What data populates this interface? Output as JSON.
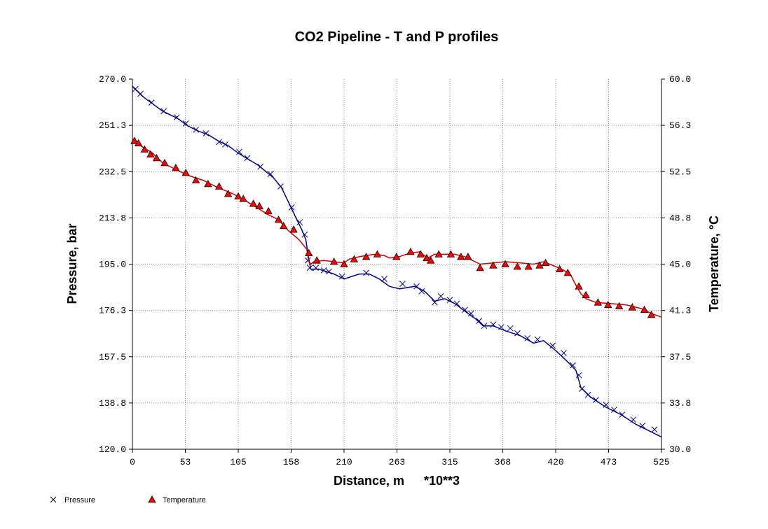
{
  "chart_data": {
    "type": "line",
    "title": "CO2 Pipeline - T and P profiles",
    "xlabel": "Distance, m",
    "xlabel_suffix": "*10**3",
    "ylabel": "Pressure, bar",
    "y2label": "Temperature, °C",
    "xlim": [
      0,
      525
    ],
    "ylim": [
      120,
      270
    ],
    "y2lim": [
      30,
      60
    ],
    "x_ticks": [
      "0",
      "53",
      "105",
      "158",
      "210",
      "263",
      "315",
      "368",
      "420",
      "473",
      "525"
    ],
    "y_ticks": [
      "120.0",
      "138.8",
      "157.5",
      "176.3",
      "195.0",
      "213.8",
      "232.5",
      "251.3",
      "270.0"
    ],
    "y2_ticks": [
      "30.0",
      "33.8",
      "37.5",
      "41.3",
      "45.0",
      "48.8",
      "52.5",
      "56.3",
      "60.0"
    ],
    "grid": true,
    "legend_position": "bottom-left",
    "series": [
      {
        "name": "Pressure",
        "axis": "left",
        "color": "#00008b",
        "marker": "x",
        "points": [
          [
            0,
            267
          ],
          [
            5,
            265
          ],
          [
            10,
            263
          ],
          [
            20,
            260
          ],
          [
            30,
            257
          ],
          [
            45,
            254
          ],
          [
            55,
            251
          ],
          [
            65,
            249
          ],
          [
            75,
            247.5
          ],
          [
            85,
            245
          ],
          [
            95,
            243
          ],
          [
            105,
            240
          ],
          [
            115,
            237.5
          ],
          [
            125,
            235
          ],
          [
            140,
            230
          ],
          [
            148,
            226
          ],
          [
            155,
            220
          ],
          [
            162,
            214
          ],
          [
            168,
            209
          ],
          [
            172,
            205
          ],
          [
            175,
            197
          ],
          [
            177,
            193
          ],
          [
            185,
            193
          ],
          [
            200,
            191
          ],
          [
            210,
            189
          ],
          [
            225,
            191
          ],
          [
            235,
            191
          ],
          [
            245,
            189
          ],
          [
            255,
            186
          ],
          [
            265,
            185
          ],
          [
            280,
            186
          ],
          [
            290,
            184
          ],
          [
            300,
            180
          ],
          [
            310,
            181
          ],
          [
            320,
            179
          ],
          [
            333,
            175
          ],
          [
            340,
            173
          ],
          [
            348,
            170
          ],
          [
            358,
            170
          ],
          [
            370,
            168
          ],
          [
            385,
            166
          ],
          [
            398,
            163
          ],
          [
            408,
            164
          ],
          [
            420,
            160
          ],
          [
            433,
            155
          ],
          [
            440,
            152
          ],
          [
            445,
            145
          ],
          [
            455,
            141
          ],
          [
            470,
            137
          ],
          [
            485,
            134
          ],
          [
            500,
            130
          ],
          [
            515,
            127
          ],
          [
            525,
            125
          ]
        ],
        "markers": [
          [
            3,
            266
          ],
          [
            8,
            264
          ],
          [
            19,
            260.5
          ],
          [
            31,
            257
          ],
          [
            44,
            254.5
          ],
          [
            53,
            252
          ],
          [
            63,
            249.5
          ],
          [
            73,
            248
          ],
          [
            86,
            244.5
          ],
          [
            92,
            243.5
          ],
          [
            106,
            240.5
          ],
          [
            114,
            238
          ],
          [
            127,
            234.5
          ],
          [
            137,
            231.5
          ],
          [
            147,
            226.5
          ],
          [
            158,
            218
          ],
          [
            166,
            212
          ],
          [
            171,
            207
          ],
          [
            174,
            196.5
          ],
          [
            176,
            193.5
          ],
          [
            182,
            193.5
          ],
          [
            190,
            192.5
          ],
          [
            195,
            192
          ],
          [
            208,
            190
          ],
          [
            232,
            191.5
          ],
          [
            250,
            189
          ],
          [
            268,
            187
          ],
          [
            282,
            186
          ],
          [
            287,
            184
          ],
          [
            300,
            179.5
          ],
          [
            306,
            182
          ],
          [
            315,
            180.5
          ],
          [
            322,
            179
          ],
          [
            330,
            176.5
          ],
          [
            336,
            175
          ],
          [
            344,
            172
          ],
          [
            349,
            170
          ],
          [
            358,
            170.5
          ],
          [
            366,
            169.5
          ],
          [
            375,
            169
          ],
          [
            382,
            167
          ],
          [
            392,
            165
          ],
          [
            402,
            164.5
          ],
          [
            417,
            162
          ],
          [
            428,
            159
          ],
          [
            437,
            154
          ],
          [
            443,
            150
          ],
          [
            446,
            144.5
          ],
          [
            452,
            142
          ],
          [
            460,
            140
          ],
          [
            470,
            138
          ],
          [
            478,
            136
          ],
          [
            486,
            134
          ],
          [
            497,
            132
          ],
          [
            506,
            129.5
          ],
          [
            518,
            128
          ]
        ]
      },
      {
        "name": "Temperature",
        "axis": "right",
        "color": "#cc0000",
        "marker": "triangle",
        "points": [
          [
            0,
            55
          ],
          [
            10,
            54.5
          ],
          [
            20,
            54
          ],
          [
            30,
            53.2
          ],
          [
            40,
            52.8
          ],
          [
            55,
            52.2
          ],
          [
            70,
            51.8
          ],
          [
            85,
            51.2
          ],
          [
            100,
            50.7
          ],
          [
            115,
            50
          ],
          [
            125,
            49.5
          ],
          [
            135,
            49
          ],
          [
            145,
            48.6
          ],
          [
            155,
            47.7
          ],
          [
            165,
            47
          ],
          [
            173,
            46.2
          ],
          [
            175,
            45.2
          ],
          [
            177,
            45
          ],
          [
            180,
            45.2
          ],
          [
            190,
            45.3
          ],
          [
            200,
            45.2
          ],
          [
            210,
            45.1
          ],
          [
            215,
            45.4
          ],
          [
            225,
            45.6
          ],
          [
            240,
            45.8
          ],
          [
            250,
            45.7
          ],
          [
            255,
            45.5
          ],
          [
            265,
            45.6
          ],
          [
            275,
            45.9
          ],
          [
            285,
            46
          ],
          [
            293,
            45.5
          ],
          [
            300,
            45.8
          ],
          [
            320,
            45.8
          ],
          [
            330,
            45.6
          ],
          [
            345,
            45
          ],
          [
            358,
            45.1
          ],
          [
            370,
            45.2
          ],
          [
            385,
            45.1
          ],
          [
            398,
            45
          ],
          [
            408,
            45.2
          ],
          [
            420,
            44.8
          ],
          [
            428,
            44.5
          ],
          [
            435,
            44.1
          ],
          [
            440,
            43.3
          ],
          [
            445,
            42.6
          ],
          [
            450,
            42.2
          ],
          [
            460,
            41.9
          ],
          [
            475,
            41.8
          ],
          [
            490,
            41.7
          ],
          [
            505,
            41.4
          ],
          [
            515,
            41
          ],
          [
            525,
            40.7
          ]
        ],
        "markers": [
          [
            2,
            55
          ],
          [
            6,
            54.8
          ],
          [
            12,
            54.3
          ],
          [
            18,
            53.9
          ],
          [
            24,
            53.6
          ],
          [
            32,
            53.2
          ],
          [
            43,
            52.8
          ],
          [
            53,
            52.4
          ],
          [
            63,
            51.8
          ],
          [
            75,
            51.5
          ],
          [
            86,
            51.3
          ],
          [
            95,
            50.7
          ],
          [
            105,
            50.5
          ],
          [
            110,
            50.3
          ],
          [
            120,
            49.9
          ],
          [
            126,
            49.7
          ],
          [
            135,
            49.3
          ],
          [
            145,
            48.6
          ],
          [
            150,
            48.1
          ],
          [
            160,
            47.8
          ],
          [
            175,
            45.9
          ],
          [
            183,
            45.3
          ],
          [
            200,
            45.2
          ],
          [
            210,
            45
          ],
          [
            220,
            45.4
          ],
          [
            232,
            45.6
          ],
          [
            243,
            45.8
          ],
          [
            262,
            45.6
          ],
          [
            276,
            46
          ],
          [
            286,
            45.8
          ],
          [
            292,
            45.5
          ],
          [
            296,
            45.3
          ],
          [
            304,
            45.8
          ],
          [
            316,
            45.8
          ],
          [
            326,
            45.6
          ],
          [
            333,
            45.6
          ],
          [
            345,
            44.7
          ],
          [
            358,
            44.9
          ],
          [
            370,
            45
          ],
          [
            382,
            44.8
          ],
          [
            393,
            44.8
          ],
          [
            404,
            44.9
          ],
          [
            410,
            45.1
          ],
          [
            424,
            44.6
          ],
          [
            432,
            44.3
          ],
          [
            443,
            43.2
          ],
          [
            450,
            42.5
          ],
          [
            462,
            41.9
          ],
          [
            472,
            41.7
          ],
          [
            483,
            41.6
          ],
          [
            496,
            41.5
          ],
          [
            508,
            41.3
          ],
          [
            515,
            40.9
          ]
        ]
      }
    ]
  }
}
